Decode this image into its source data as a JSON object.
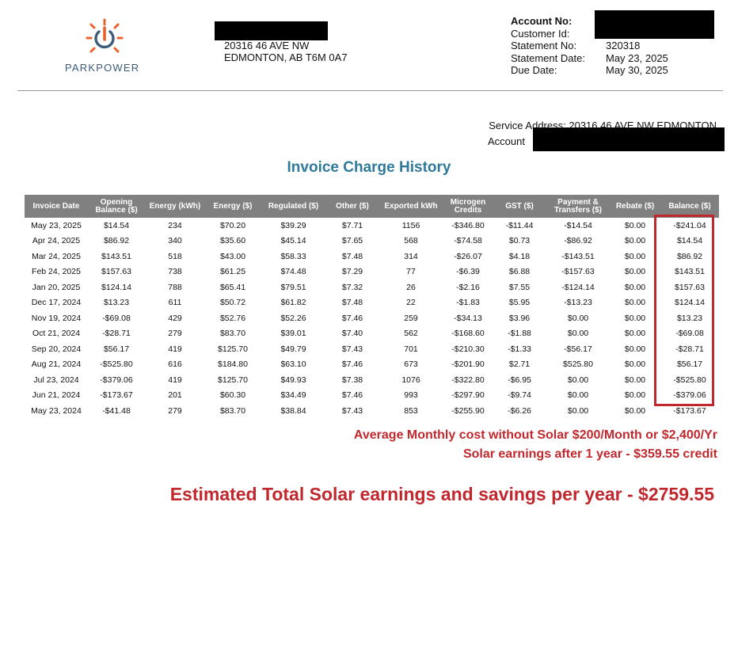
{
  "brand": {
    "name": "PARKPOWER",
    "accent": "#e8632b",
    "text_color": "#3c5a7a"
  },
  "address": {
    "line1": "20316 46 AVE NW",
    "line2": "EDMONTON, AB T6M 0A7"
  },
  "account_info": [
    {
      "label": "Account No:",
      "value": ""
    },
    {
      "label": "Customer Id:",
      "value": ""
    },
    {
      "label": "Statement No:",
      "value": "320318"
    },
    {
      "label": "Statement Date:",
      "value": "May 23, 2025"
    },
    {
      "label": "Due Date:",
      "value": "May 30, 2025"
    }
  ],
  "service": {
    "label": "Service Address:",
    "address": "20316 46 AVE NW EDMONTON",
    "account_label": "Account"
  },
  "title": "Invoice Charge History",
  "table": {
    "headers": [
      "Invoice Date",
      "Opening Balance ($)",
      "Energy (kWh)",
      "Energy ($)",
      "Regulated ($)",
      "Other ($)",
      "Exported kWh",
      "Microgen Credits",
      "GST ($)",
      "Payment & Transfers ($)",
      "Rebate ($)",
      "Balance ($)"
    ],
    "rows": [
      [
        "May 23, 2025",
        "$14.54",
        "234",
        "$70.20",
        "$39.29",
        "$7.71",
        "1156",
        "-$346.80",
        "-$11.44",
        "-$14.54",
        "$0.00",
        "-$241.04"
      ],
      [
        "Apr 24, 2025",
        "$86.92",
        "340",
        "$35.60",
        "$45.14",
        "$7.65",
        "568",
        "-$74.58",
        "$0.73",
        "-$86.92",
        "$0.00",
        "$14.54"
      ],
      [
        "Mar 24, 2025",
        "$143.51",
        "518",
        "$43.00",
        "$58.33",
        "$7.48",
        "314",
        "-$26.07",
        "$4.18",
        "-$143.51",
        "$0.00",
        "$86.92"
      ],
      [
        "Feb 24, 2025",
        "$157.63",
        "738",
        "$61.25",
        "$74.48",
        "$7.29",
        "77",
        "-$6.39",
        "$6.88",
        "-$157.63",
        "$0.00",
        "$143.51"
      ],
      [
        "Jan 20, 2025",
        "$124.14",
        "788",
        "$65.41",
        "$79.51",
        "$7.32",
        "26",
        "-$2.16",
        "$7.55",
        "-$124.14",
        "$0.00",
        "$157.63"
      ],
      [
        "Dec 17, 2024",
        "$13.23",
        "611",
        "$50.72",
        "$61.82",
        "$7.48",
        "22",
        "-$1.83",
        "$5.95",
        "-$13.23",
        "$0.00",
        "$124.14"
      ],
      [
        "Nov 19, 2024",
        "-$69.08",
        "429",
        "$52.76",
        "$52.26",
        "$7.46",
        "259",
        "-$34.13",
        "$3.96",
        "$0.00",
        "$0.00",
        "$13.23"
      ],
      [
        "Oct 21, 2024",
        "-$28.71",
        "279",
        "$83.70",
        "$39.01",
        "$7.40",
        "562",
        "-$168.60",
        "-$1.88",
        "$0.00",
        "$0.00",
        "-$69.08"
      ],
      [
        "Sep 20, 2024",
        "$56.17",
        "419",
        "$125.70",
        "$49.79",
        "$7.43",
        "701",
        "-$210.30",
        "-$1.33",
        "-$56.17",
        "$0.00",
        "-$28.71"
      ],
      [
        "Aug 21, 2024",
        "-$525.80",
        "616",
        "$184.80",
        "$63.10",
        "$7.46",
        "673",
        "-$201.90",
        "$2.71",
        "$525.80",
        "$0.00",
        "$56.17"
      ],
      [
        "Jul 23, 2024",
        "-$379.06",
        "419",
        "$125.70",
        "$49.93",
        "$7.38",
        "1076",
        "-$322.80",
        "-$6.95",
        "$0.00",
        "$0.00",
        "-$525.80"
      ],
      [
        "Jun 21, 2024",
        "-$173.67",
        "201",
        "$60.30",
        "$34.49",
        "$7.46",
        "993",
        "-$297.90",
        "-$9.74",
        "$0.00",
        "$0.00",
        "-$379.06"
      ],
      [
        "May 23, 2024",
        "-$41.48",
        "279",
        "$83.70",
        "$38.84",
        "$7.43",
        "853",
        "-$255.90",
        "-$6.26",
        "$0.00",
        "$0.00",
        "-$173.67"
      ]
    ]
  },
  "notes": {
    "line1": "Average Monthly cost without Solar $200/Month or $2,400/Yr",
    "line2": "Solar earnings after 1 year - $359.55 credit",
    "line3": "Estimated Total Solar earnings and savings per year - $2759.55"
  },
  "colors": {
    "title": "#2f7a9a",
    "header_bg": "#808080",
    "note": "#c0282d",
    "redaction": "#000000"
  }
}
